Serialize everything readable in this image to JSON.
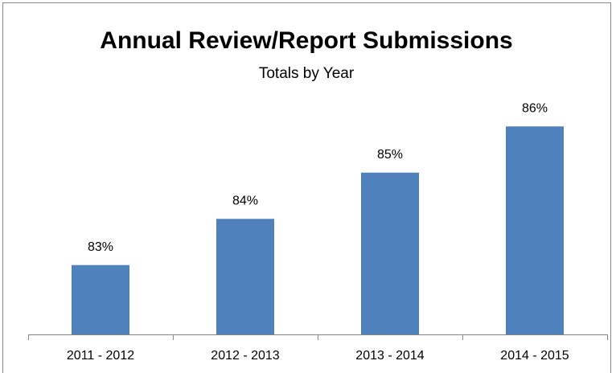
{
  "chart_data": {
    "type": "bar",
    "title": "Annual Review/Report Submissions",
    "subtitle": "Totals by Year",
    "categories": [
      "2011 - 2012",
      "2012 - 2013",
      "2013 - 2014",
      "2014 - 2015"
    ],
    "values": [
      83,
      84,
      85,
      86
    ],
    "value_labels": [
      "83%",
      "84%",
      "85%",
      "86%"
    ],
    "color": "#4f81bd",
    "ylim": [
      81.5,
      86.5
    ]
  }
}
